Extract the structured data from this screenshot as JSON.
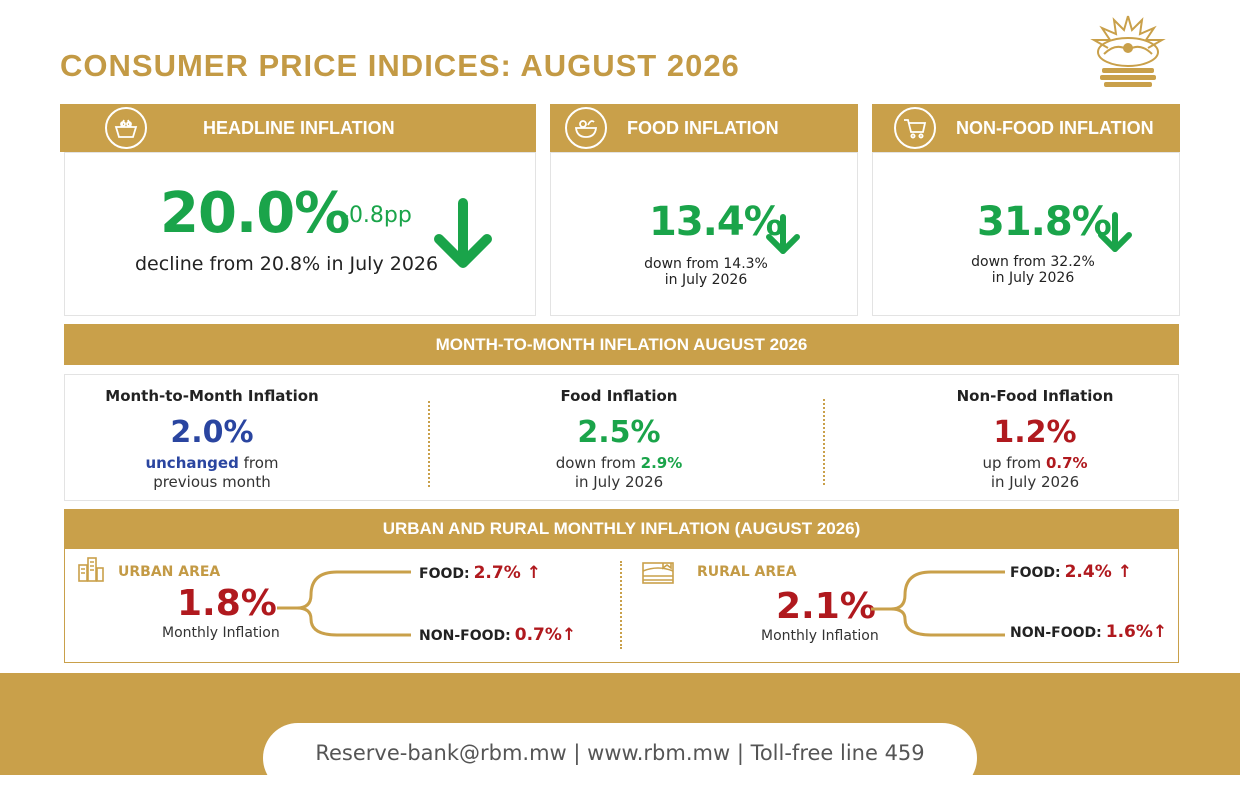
{
  "title": "CONSUMER PRICE INDICES: AUGUST 2026",
  "cards": {
    "headline": {
      "label": "HEADLINE INFLATION",
      "value": "20.0%",
      "change": "-0.8pp",
      "note": "decline from 20.8% in July 2026",
      "icon": "food-basket-icon"
    },
    "food": {
      "label": "FOOD INFLATION",
      "value": "13.4%",
      "note_line1": "down from 14.3%",
      "note_line2": "in July 2026",
      "icon": "food-bowl-icon"
    },
    "nonfood": {
      "label": "NON-FOOD INFLATION",
      "value": "31.8%",
      "note_line1": "down from 32.2%",
      "note_line2": "in July 2026",
      "icon": "shopping-cart-icon"
    }
  },
  "month_to_month": {
    "band": "MONTH-TO-MONTH INFLATION AUGUST 2026",
    "cols": [
      {
        "title": "Month-to-Month Inflation",
        "value": "2.0%",
        "emph": "unchanged",
        "rest": " from",
        "line2": "previous month"
      },
      {
        "title": "Food Inflation",
        "value": "2.5%",
        "pre": "down from ",
        "emph": "2.9%",
        "line2": "in July 2026"
      },
      {
        "title": "Non-Food Inflation",
        "value": "1.2%",
        "pre": "up from ",
        "emph": "0.7%",
        "line2": "in July 2026"
      }
    ]
  },
  "urban_rural": {
    "band": "URBAN AND RURAL MONTHLY INFLATION (AUGUST 2026)",
    "urban": {
      "label": "URBAN AREA",
      "value": "1.8%",
      "sub": "Monthly Inflation",
      "food_label": "FOOD:",
      "food_value": "2.7%",
      "nonfood_label": "NON-FOOD:",
      "nonfood_value": "0.7%",
      "icon": "city-buildings-icon"
    },
    "rural": {
      "label": "RURAL AREA",
      "value": "2.1%",
      "sub": "Monthly Inflation",
      "food_label": "FOOD:",
      "food_value": "2.4%",
      "nonfood_label": "NON-FOOD:",
      "nonfood_value": "1.6%",
      "icon": "farm-field-icon"
    }
  },
  "footer": {
    "contact": "Reserve-bank@rbm.mw | www.rbm.mw | Toll-free line 459"
  },
  "colors": {
    "gold": "#c9a04a",
    "title_gold": "#c39a45",
    "green": "#1aa44a",
    "navy": "#2a45a0",
    "red": "#b0191e"
  }
}
